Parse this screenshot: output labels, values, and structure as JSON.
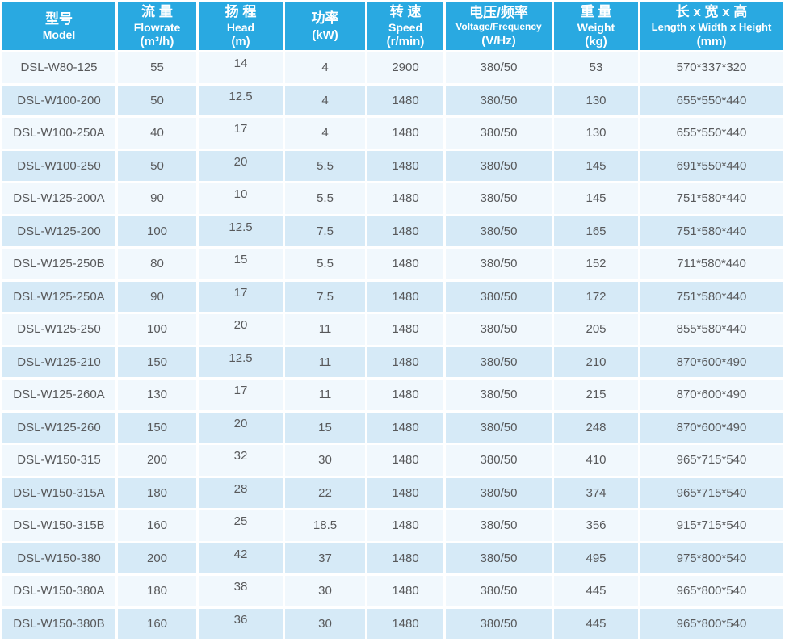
{
  "colors": {
    "header_bg": "#29a9e1",
    "header_text": "#ffffff",
    "row_odd": "#f1f8fd",
    "row_even": "#d6eaf7",
    "cell_text": "#58595b"
  },
  "table": {
    "columns": [
      {
        "zh": "型号",
        "en": "Model",
        "unit": ""
      },
      {
        "zh": "流 量",
        "en": "Flowrate",
        "unit": "(m³/h)"
      },
      {
        "zh": "扬 程",
        "en": "Head",
        "unit": "(m)"
      },
      {
        "zh": "功率",
        "en": "",
        "unit": "(kW)"
      },
      {
        "zh": "转 速",
        "en": "Speed",
        "unit": "(r/min)"
      },
      {
        "zh": "电压/频率",
        "en": "Voltage/Frequency",
        "unit": "(V/Hz)"
      },
      {
        "zh": "重 量",
        "en": "Weight",
        "unit": "(kg)"
      },
      {
        "zh": "长 x 宽 x 高",
        "en": "Length x Width x Height",
        "unit": "(mm)"
      }
    ],
    "rows": [
      [
        "DSL-W80-125",
        "55",
        "14",
        "4",
        "2900",
        "380/50",
        "53",
        "570*337*320"
      ],
      [
        "DSL-W100-200",
        "50",
        "12.5",
        "4",
        "1480",
        "380/50",
        "130",
        "655*550*440"
      ],
      [
        "DSL-W100-250A",
        "40",
        "17",
        "4",
        "1480",
        "380/50",
        "130",
        "655*550*440"
      ],
      [
        "DSL-W100-250",
        "50",
        "20",
        "5.5",
        "1480",
        "380/50",
        "145",
        "691*550*440"
      ],
      [
        "DSL-W125-200A",
        "90",
        "10",
        "5.5",
        "1480",
        "380/50",
        "145",
        "751*580*440"
      ],
      [
        "DSL-W125-200",
        "100",
        "12.5",
        "7.5",
        "1480",
        "380/50",
        "165",
        "751*580*440"
      ],
      [
        "DSL-W125-250B",
        "80",
        "15",
        "5.5",
        "1480",
        "380/50",
        "152",
        "711*580*440"
      ],
      [
        "DSL-W125-250A",
        "90",
        "17",
        "7.5",
        "1480",
        "380/50",
        "172",
        "751*580*440"
      ],
      [
        "DSL-W125-250",
        "100",
        "20",
        "11",
        "1480",
        "380/50",
        "205",
        "855*580*440"
      ],
      [
        "DSL-W125-210",
        "150",
        "12.5",
        "11",
        "1480",
        "380/50",
        "210",
        "870*600*490"
      ],
      [
        "DSL-W125-260A",
        "130",
        "17",
        "11",
        "1480",
        "380/50",
        "215",
        "870*600*490"
      ],
      [
        "DSL-W125-260",
        "150",
        "20",
        "15",
        "1480",
        "380/50",
        "248",
        "870*600*490"
      ],
      [
        "DSL-W150-315",
        "200",
        "32",
        "30",
        "1480",
        "380/50",
        "410",
        "965*715*540"
      ],
      [
        "DSL-W150-315A",
        "180",
        "28",
        "22",
        "1480",
        "380/50",
        "374",
        "965*715*540"
      ],
      [
        "DSL-W150-315B",
        "160",
        "25",
        "18.5",
        "1480",
        "380/50",
        "356",
        "915*715*540"
      ],
      [
        "DSL-W150-380",
        "200",
        "42",
        "37",
        "1480",
        "380/50",
        "495",
        "975*800*540"
      ],
      [
        "DSL-W150-380A",
        "180",
        "38",
        "30",
        "1480",
        "380/50",
        "445",
        "965*800*540"
      ],
      [
        "DSL-W150-380B",
        "160",
        "36",
        "30",
        "1480",
        "380/50",
        "445",
        "965*800*540"
      ]
    ]
  }
}
